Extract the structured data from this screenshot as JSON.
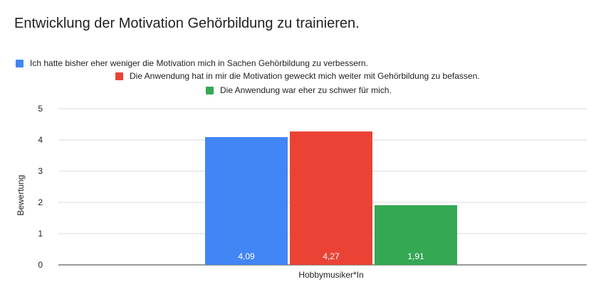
{
  "chart_data": {
    "type": "bar",
    "title": "Entwicklung der Motivation Gehörbildung zu trainieren.",
    "xlabel": "",
    "ylabel": "Bewertung",
    "categories": [
      "Hobbymusiker*In"
    ],
    "series": [
      {
        "name": "Ich hatte bisher eher weniger die Motivation mich in Sachen Gehörbildung zu verbessern.",
        "values": [
          4.09
        ],
        "label": "4,09",
        "color": "#4285f4"
      },
      {
        "name": "Die Anwendung hat in mir die Motivation geweckt mich weiter mit Gehörbildung zu befassen.",
        "values": [
          4.27
        ],
        "label": "4,27",
        "color": "#ea4335"
      },
      {
        "name": "Die Anwendung war eher zu schwer für mich.",
        "values": [
          1.91
        ],
        "label": "1,91",
        "color": "#34a853"
      }
    ],
    "ylim": [
      0,
      5
    ],
    "yticks": [
      "0",
      "1",
      "2",
      "3",
      "4",
      "5"
    ],
    "grid": true,
    "legend": "top"
  }
}
